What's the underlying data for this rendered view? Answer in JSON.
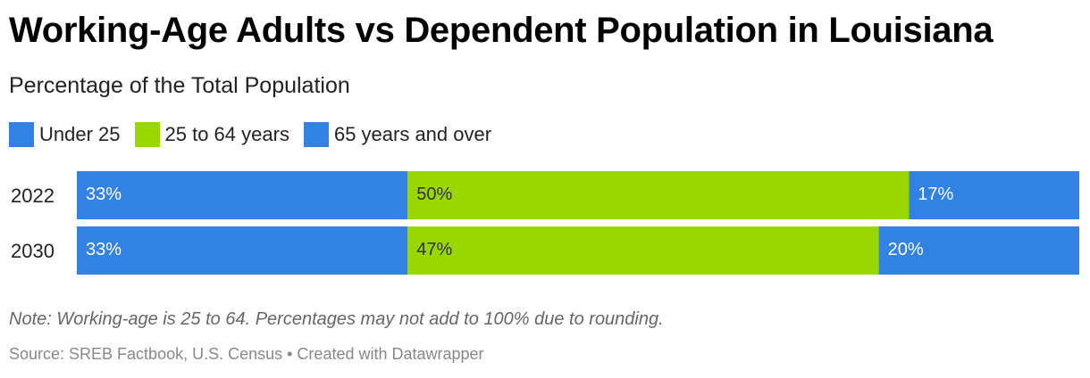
{
  "chart_data": {
    "type": "bar",
    "orientation": "horizontal",
    "stacked": true,
    "title": "Working-Age Adults vs Dependent Population in Louisiana",
    "subtitle": "Percentage of the Total Population",
    "categories": [
      "2022",
      "2030"
    ],
    "series": [
      {
        "name": "Under 25",
        "values": [
          33,
          33
        ],
        "labels": [
          "33%",
          "33%"
        ],
        "color": "#3182e3",
        "label_color": "#ffffff"
      },
      {
        "name": "25 to 64 years",
        "values": [
          50,
          47
        ],
        "labels": [
          "50%",
          "47%"
        ],
        "color": "#99d700",
        "label_color": "#333333"
      },
      {
        "name": "65 years and over",
        "values": [
          17,
          20
        ],
        "labels": [
          "17%",
          "20%"
        ],
        "color": "#3182e3",
        "label_color": "#ffffff"
      }
    ],
    "xlim": [
      0,
      100
    ],
    "legend_position": "top-left",
    "grid": false
  },
  "note": "Note: Working-age is 25 to 64. Percentages may not add to 100% due to rounding.",
  "source": "Source: SREB Factbook, U.S. Census • Created with Datawrapper"
}
